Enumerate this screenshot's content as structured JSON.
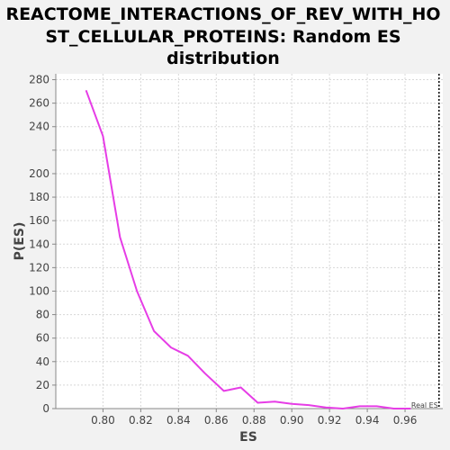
{
  "chart_data": {
    "type": "line",
    "title_lines": [
      "REACTOME_INTERACTIONS_OF_REV_WITH_HO",
      "ST_CELLULAR_PROTEINS: Random ES",
      "distribution"
    ],
    "xlabel": "ES",
    "ylabel": "P(ES)",
    "xlim": [
      0.775,
      0.98
    ],
    "ylim": [
      0,
      285
    ],
    "xticks": [
      "0.80",
      "0.82",
      "0.84",
      "0.86",
      "0.88",
      "0.90",
      "0.92",
      "0.94",
      "0.96"
    ],
    "yticks": [
      "0",
      "20",
      "40",
      "60",
      "80",
      "100",
      "120",
      "140",
      "160",
      "180",
      "200",
      "240",
      "260",
      "280"
    ],
    "yticks_full": [
      0,
      20,
      40,
      60,
      80,
      100,
      120,
      140,
      160,
      180,
      200,
      220,
      240,
      260,
      280
    ],
    "grid": true,
    "series": [
      {
        "color": "#e63de6",
        "x": [
          0.791,
          0.8,
          0.809,
          0.818,
          0.827,
          0.836,
          0.845,
          0.854,
          0.864,
          0.873,
          0.882,
          0.891,
          0.9,
          0.909,
          0.918,
          0.927,
          0.936,
          0.945,
          0.954,
          0.963
        ],
        "y": [
          271,
          232,
          146,
          100,
          66,
          52,
          45,
          30,
          15,
          18,
          5,
          6,
          4,
          3,
          1,
          0,
          2,
          2,
          0,
          0
        ]
      }
    ],
    "marker": {
      "label": "Real ES",
      "x": 0.978
    }
  }
}
